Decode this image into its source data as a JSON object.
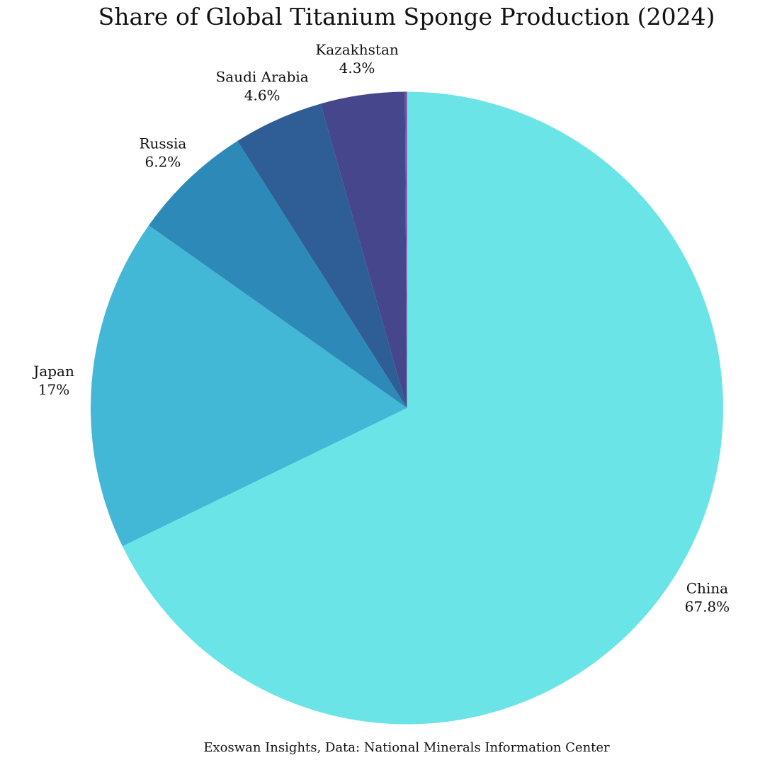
{
  "chart_data": {
    "type": "pie",
    "title": "Share of Global Titanium Sponge Production (2024)",
    "caption": "Exoswan Insights, Data: National Minerals Information Center",
    "start": "top",
    "direction": "clockwise",
    "slices": [
      {
        "label": "China",
        "value_label": "67.8%",
        "value": 67.8,
        "color": "#6ae4e7"
      },
      {
        "label": "Japan",
        "value_label": "17%",
        "value": 17.0,
        "color": "#43b7d6"
      },
      {
        "label": "Russia",
        "value_label": "6.2%",
        "value": 6.2,
        "color": "#2d8ab8"
      },
      {
        "label": "Saudi Arabia",
        "value_label": "4.6%",
        "value": 4.6,
        "color": "#2e5e95"
      },
      {
        "label": "Kazakhstan",
        "value_label": "4.3%",
        "value": 4.3,
        "color": "#46468c"
      },
      {
        "label": "",
        "value_label": "",
        "value": 0.1,
        "color": "#8a3fa8"
      }
    ]
  }
}
